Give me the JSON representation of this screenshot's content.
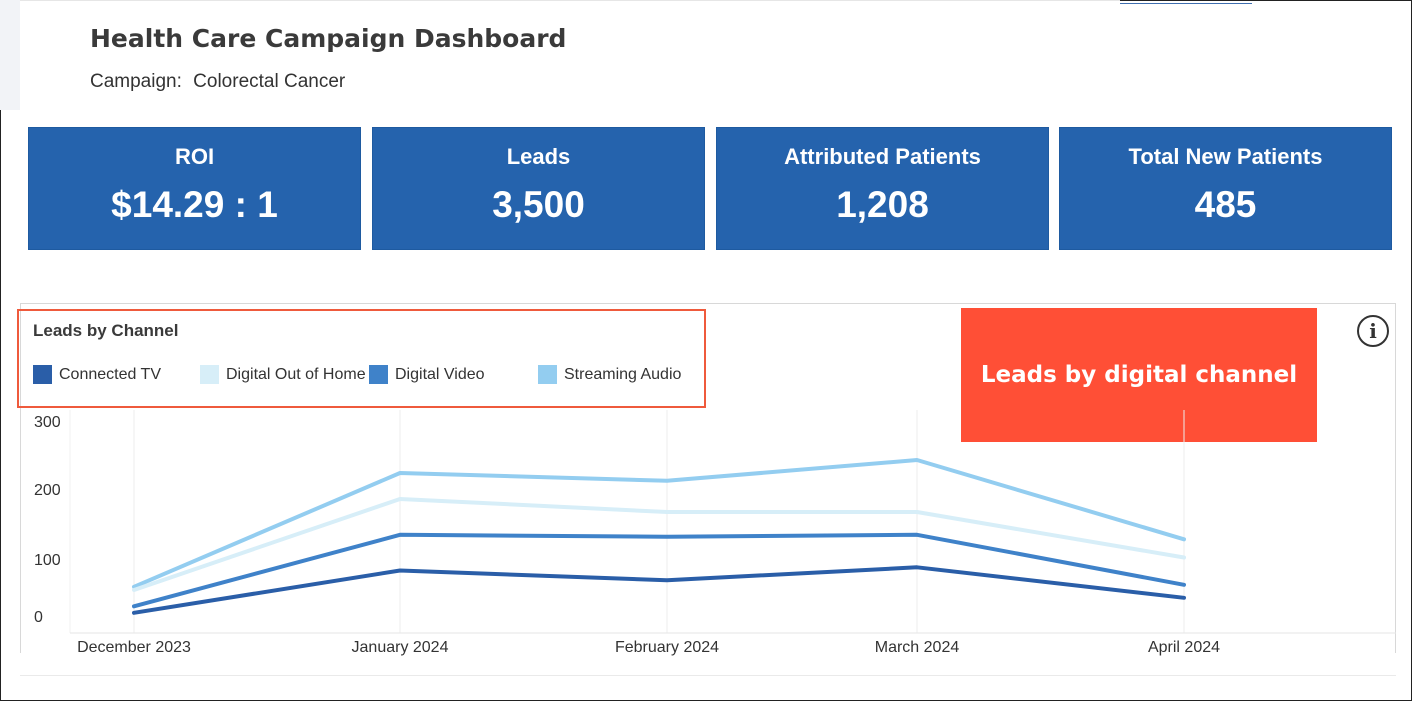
{
  "header": {
    "title": "Health Care Campaign Dashboard",
    "campaign_label": "Campaign:",
    "campaign_value": "Colorectal Cancer"
  },
  "kpis": [
    {
      "label": "ROI",
      "value": "$14.29 : 1"
    },
    {
      "label": "Leads",
      "value": "3,500"
    },
    {
      "label": "Attributed Patients",
      "value": "1,208"
    },
    {
      "label": "Total New Patients",
      "value": "485"
    }
  ],
  "callout": {
    "text": "Leads by digital channel"
  },
  "info_icon": {
    "icon": "info-icon",
    "glyph": "i"
  },
  "colors": {
    "kpi_bg": "#2563ad",
    "callout_bg": "#ff4f36",
    "highlight_border": "#ef5a3c"
  },
  "chart_data": {
    "type": "line",
    "title": "Leads by Channel",
    "categories": [
      "December 2023",
      "January 2024",
      "February 2024",
      "March 2024",
      "April 2024"
    ],
    "ylim": [
      0,
      300
    ],
    "yticks": [
      0,
      100,
      200,
      300
    ],
    "xlabel": "",
    "ylabel": "",
    "legend_position": "top-left",
    "series": [
      {
        "name": "Connected TV",
        "color": "#2a5ea8",
        "values": [
          5,
          70,
          55,
          75,
          28
        ]
      },
      {
        "name": "Digital Out of Home",
        "color": "#d7eef8",
        "values": [
          40,
          180,
          160,
          160,
          90
        ]
      },
      {
        "name": "Digital Video",
        "color": "#3f82c9",
        "values": [
          15,
          125,
          122,
          125,
          48
        ]
      },
      {
        "name": "Streaming Audio",
        "color": "#93cdf0",
        "values": [
          45,
          220,
          208,
          240,
          118
        ]
      }
    ]
  }
}
